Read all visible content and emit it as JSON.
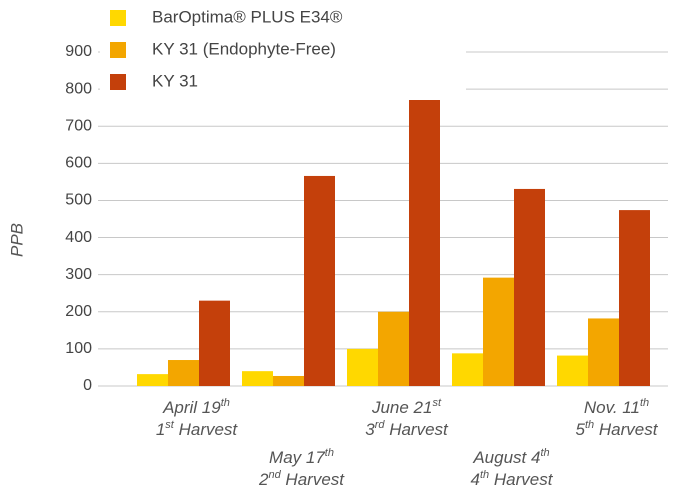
{
  "chart_data": {
    "type": "bar",
    "y_label": "PPB",
    "categories": [
      "April 19th",
      "May 17th",
      "June 21st",
      "August 4th",
      "Nov. 11th"
    ],
    "harvests": [
      "1st Harvest",
      "2nd Harvest",
      "3rd Harvest",
      "4th Harvest",
      "5th Harvest"
    ],
    "series": [
      {
        "name": "BarOptima® PLUS E34®",
        "color": "#ffd800",
        "values": [
          32,
          40,
          100,
          88,
          82
        ]
      },
      {
        "name": "KY 31 (Endophyte-Free)",
        "color": "#f3a600",
        "values": [
          70,
          27,
          200,
          292,
          182
        ]
      },
      {
        "name": "KY 31",
        "color": "#c4400b",
        "values": [
          230,
          566,
          848,
          531,
          474
        ]
      }
    ],
    "ylim": [
      0,
      900
    ],
    "yticks": [
      0,
      100,
      200,
      300,
      400,
      500,
      600,
      700,
      800,
      900
    ],
    "grid": true,
    "legend": "top-left"
  }
}
